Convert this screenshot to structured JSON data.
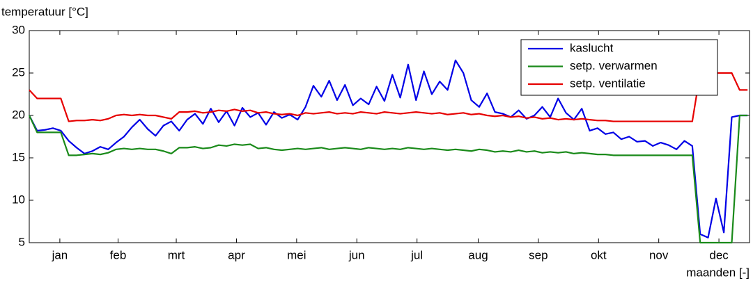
{
  "chart_data": {
    "type": "line",
    "title": "temperatuur [°C]",
    "x_label": "maanden [-]",
    "x": [
      0,
      4,
      8,
      12,
      16,
      20,
      24,
      28,
      32,
      36,
      40,
      44,
      48,
      52,
      56,
      60,
      64,
      68,
      72,
      76,
      80,
      84,
      88,
      92,
      96,
      100,
      104,
      108,
      112,
      116,
      120,
      124,
      128,
      132,
      136,
      140,
      144,
      148,
      152,
      156,
      160,
      164,
      168,
      172,
      176,
      180,
      184,
      188,
      192,
      196,
      200,
      204,
      208,
      212,
      216,
      220,
      224,
      228,
      232,
      236,
      240,
      244,
      248,
      252,
      256,
      260,
      264,
      268,
      272,
      276,
      280,
      284,
      288,
      292,
      296,
      300,
      304,
      308,
      312,
      316,
      320,
      324,
      328,
      332,
      336,
      340,
      344,
      348,
      352,
      356,
      360,
      364
    ],
    "series": [
      {
        "name": "kaslucht",
        "color": "#0000e6",
        "values": [
          20,
          18.2,
          18.3,
          18.5,
          18.2,
          17,
          16.2,
          15.5,
          15.8,
          16.3,
          16,
          16.8,
          17.5,
          18.6,
          19.5,
          18.4,
          17.6,
          18.8,
          19.3,
          18.2,
          19.5,
          20.2,
          19,
          20.8,
          19.2,
          20.5,
          18.8,
          20.9,
          19.8,
          20.3,
          18.9,
          20.4,
          19.7,
          20.1,
          19.5,
          21,
          23.5,
          22.2,
          24.1,
          21.8,
          23.6,
          21.2,
          22,
          21.3,
          23.4,
          21.7,
          24.8,
          22.1,
          26,
          21.8,
          25.2,
          22.5,
          24,
          23,
          26.5,
          25,
          21.8,
          21,
          22.6,
          20.4,
          20.2,
          19.8,
          20.6,
          19.6,
          20,
          21,
          19.8,
          22,
          20.3,
          19.5,
          20.8,
          18.2,
          18.5,
          17.8,
          18,
          17.2,
          17.5,
          16.9,
          17,
          16.4,
          16.8,
          16.5,
          16,
          17,
          16.4,
          6,
          5.6,
          10.2,
          6.2,
          19.8,
          20,
          20
        ]
      },
      {
        "name": "setp. verwarmen",
        "color": "#1a8a1a",
        "values": [
          20,
          18,
          18,
          18,
          18,
          15.3,
          15.3,
          15.4,
          15.5,
          15.4,
          15.6,
          16,
          16.1,
          16,
          16.1,
          16,
          16,
          15.8,
          15.5,
          16.2,
          16.2,
          16.3,
          16.1,
          16.2,
          16.5,
          16.4,
          16.6,
          16.5,
          16.6,
          16.1,
          16.2,
          16,
          15.9,
          16,
          16.1,
          16,
          16.1,
          16.2,
          16,
          16.1,
          16.2,
          16.1,
          16,
          16.2,
          16.1,
          16,
          16.1,
          16,
          16.2,
          16.1,
          16,
          16.1,
          16,
          15.9,
          16,
          15.9,
          15.8,
          16,
          15.9,
          15.7,
          15.8,
          15.7,
          15.9,
          15.7,
          15.8,
          15.6,
          15.7,
          15.6,
          15.7,
          15.5,
          15.6,
          15.5,
          15.4,
          15.4,
          15.3,
          15.3,
          15.3,
          15.3,
          15.3,
          15.3,
          15.3,
          15.3,
          15.3,
          15.3,
          15.3,
          5,
          5,
          5,
          5,
          5,
          20,
          20
        ]
      },
      {
        "name": "setp. ventilatie",
        "color": "#e60000",
        "values": [
          23,
          22,
          22,
          22,
          22,
          19.3,
          19.4,
          19.4,
          19.5,
          19.4,
          19.6,
          20,
          20.1,
          20,
          20.1,
          20,
          20,
          19.8,
          19.6,
          20.4,
          20.4,
          20.5,
          20.3,
          20.4,
          20.6,
          20.5,
          20.7,
          20.5,
          20.6,
          20.3,
          20.4,
          20.2,
          20.1,
          20.2,
          20,
          20.3,
          20.2,
          20.3,
          20.4,
          20.2,
          20.3,
          20.2,
          20.4,
          20.3,
          20.2,
          20.4,
          20.3,
          20.2,
          20.3,
          20.4,
          20.3,
          20.2,
          20.3,
          20.1,
          20.2,
          20.3,
          20.1,
          20.2,
          20,
          19.9,
          20,
          19.8,
          19.9,
          19.7,
          19.8,
          19.6,
          19.7,
          19.5,
          19.6,
          19.5,
          19.6,
          19.5,
          19.4,
          19.4,
          19.3,
          19.3,
          19.3,
          19.3,
          19.3,
          19.3,
          19.3,
          19.3,
          19.3,
          19.3,
          19.3,
          25,
          25,
          25,
          25,
          25,
          23,
          23
        ]
      }
    ],
    "xlim": [
      0,
      365
    ],
    "xticks": [
      {
        "value": 15.5,
        "label": "jan"
      },
      {
        "value": 45,
        "label": "feb"
      },
      {
        "value": 74.5,
        "label": "mrt"
      },
      {
        "value": 105,
        "label": "apr"
      },
      {
        "value": 135.5,
        "label": "mei"
      },
      {
        "value": 166,
        "label": "jun"
      },
      {
        "value": 196.5,
        "label": "jul"
      },
      {
        "value": 227.5,
        "label": "aug"
      },
      {
        "value": 258,
        "label": "sep"
      },
      {
        "value": 288.5,
        "label": "okt"
      },
      {
        "value": 319,
        "label": "nov"
      },
      {
        "value": 349.5,
        "label": "dec"
      }
    ],
    "ylim": [
      5,
      30
    ],
    "yticks": [
      5,
      10,
      15,
      20,
      25,
      30
    ],
    "legend": "upper right"
  }
}
